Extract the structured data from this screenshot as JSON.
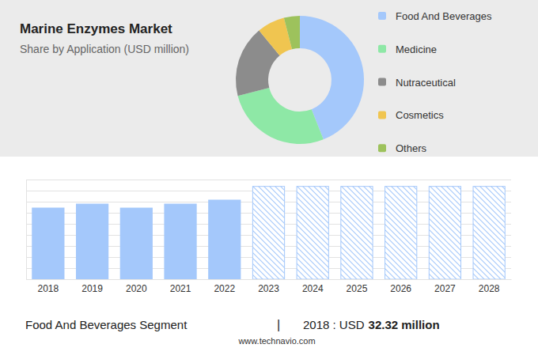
{
  "chart_data": [
    {
      "type": "pie",
      "title": "Marine Enzymes Market",
      "subtitle": "Share by Application (USD million)",
      "categories": [
        "Food And Beverages",
        "Medicine",
        "Nutraceutical",
        "Cosmetics",
        "Others"
      ],
      "values": [
        44,
        27,
        18,
        7,
        4
      ],
      "colors": [
        "#a4c8fb",
        "#8ee8a6",
        "#8c8c8c",
        "#f0c550",
        "#9dc25c"
      ],
      "legend": "right"
    },
    {
      "type": "bar",
      "categories": [
        "2018",
        "2019",
        "2020",
        "2021",
        "2022",
        "2023",
        "2024",
        "2025",
        "2026",
        "2027",
        "2028"
      ],
      "series": [
        {
          "color": "#a4c8fb",
          "values": [
            32.32,
            34.1,
            32.3,
            34.1,
            35.9,
            null,
            null,
            null,
            null,
            null,
            null
          ]
        },
        {
          "color": "#a4c8fb",
          "line_style": "hatched",
          "values": [
            null,
            null,
            null,
            null,
            null,
            41.9,
            41.9,
            41.9,
            41.9,
            41.9,
            41.9
          ]
        }
      ],
      "ylim": [
        0,
        45
      ],
      "yticks": [
        0,
        5,
        10,
        15,
        20,
        25,
        30,
        35,
        40,
        45
      ],
      "grid": true,
      "tick_labels": "x",
      "annotations": [
        "Food And Beverages Segment",
        "|",
        "2018 : USD",
        "32.32 million",
        "www.technavio.com"
      ]
    }
  ]
}
